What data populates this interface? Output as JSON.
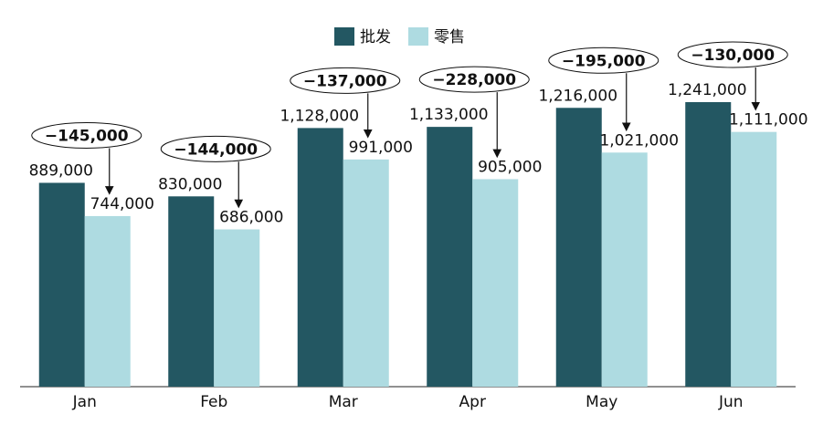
{
  "chart_data": {
    "type": "bar",
    "categories": [
      "Jan",
      "Feb",
      "Mar",
      "Apr",
      "May",
      "Jun"
    ],
    "series": [
      {
        "name": "批发",
        "color": "#235762",
        "values": [
          889000,
          830000,
          1128000,
          1133000,
          1216000,
          1241000
        ],
        "value_labels": [
          "889,000",
          "830,000",
          "1,128,000",
          "1,133,000",
          "1,216,000",
          "1,241,000"
        ]
      },
      {
        "name": "零售",
        "color": "#aedbe1",
        "values": [
          744000,
          686000,
          991000,
          905000,
          1021000,
          1111000
        ],
        "value_labels": [
          "744,000",
          "686,000",
          "991,000",
          "905,000",
          "1,021,000",
          "1,111,000"
        ]
      }
    ],
    "annotations": [
      {
        "value": -145000,
        "label": "−145,000"
      },
      {
        "value": -144000,
        "label": "−144,000"
      },
      {
        "value": -137000,
        "label": "−137,000"
      },
      {
        "value": -228000,
        "label": "−228,000"
      },
      {
        "value": -195000,
        "label": "−195,000"
      },
      {
        "value": -130000,
        "label": "−130,000"
      }
    ],
    "ylim": [
      0,
      1400000
    ],
    "legend": "top"
  }
}
